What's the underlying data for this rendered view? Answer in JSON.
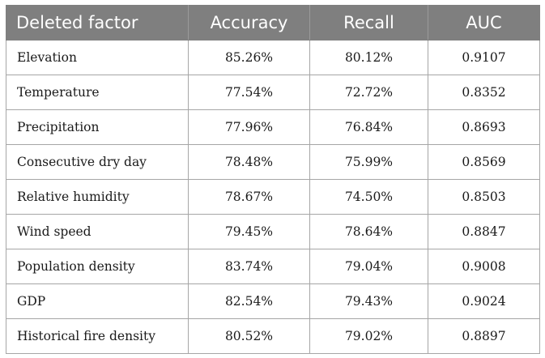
{
  "table": {
    "headers": [
      "Deleted factor",
      "Accuracy",
      "Recall",
      "AUC"
    ],
    "rows": [
      {
        "factor": "Elevation",
        "accuracy": "85.26%",
        "recall": "80.12%",
        "auc": "0.9107"
      },
      {
        "factor": "Temperature",
        "accuracy": "77.54%",
        "recall": "72.72%",
        "auc": "0.8352"
      },
      {
        "factor": "Precipitation",
        "accuracy": "77.96%",
        "recall": "76.84%",
        "auc": "0.8693"
      },
      {
        "factor": "Consecutive dry day",
        "accuracy": "78.48%",
        "recall": "75.99%",
        "auc": "0.8569"
      },
      {
        "factor": "Relative humidity",
        "accuracy": "78.67%",
        "recall": "74.50%",
        "auc": "0.8503"
      },
      {
        "factor": "Wind speed",
        "accuracy": "79.45%",
        "recall": "78.64%",
        "auc": "0.8847"
      },
      {
        "factor": "Population density",
        "accuracy": "83.74%",
        "recall": "79.04%",
        "auc": "0.9008"
      },
      {
        "factor": "GDP",
        "accuracy": "82.54%",
        "recall": "79.43%",
        "auc": "0.9024"
      },
      {
        "factor": "Historical fire density",
        "accuracy": "80.52%",
        "recall": "79.02%",
        "auc": "0.8897"
      }
    ]
  },
  "colors": {
    "header_bg": "#7f7f7f",
    "header_text": "#ffffff",
    "border": "#a6a6a6"
  }
}
